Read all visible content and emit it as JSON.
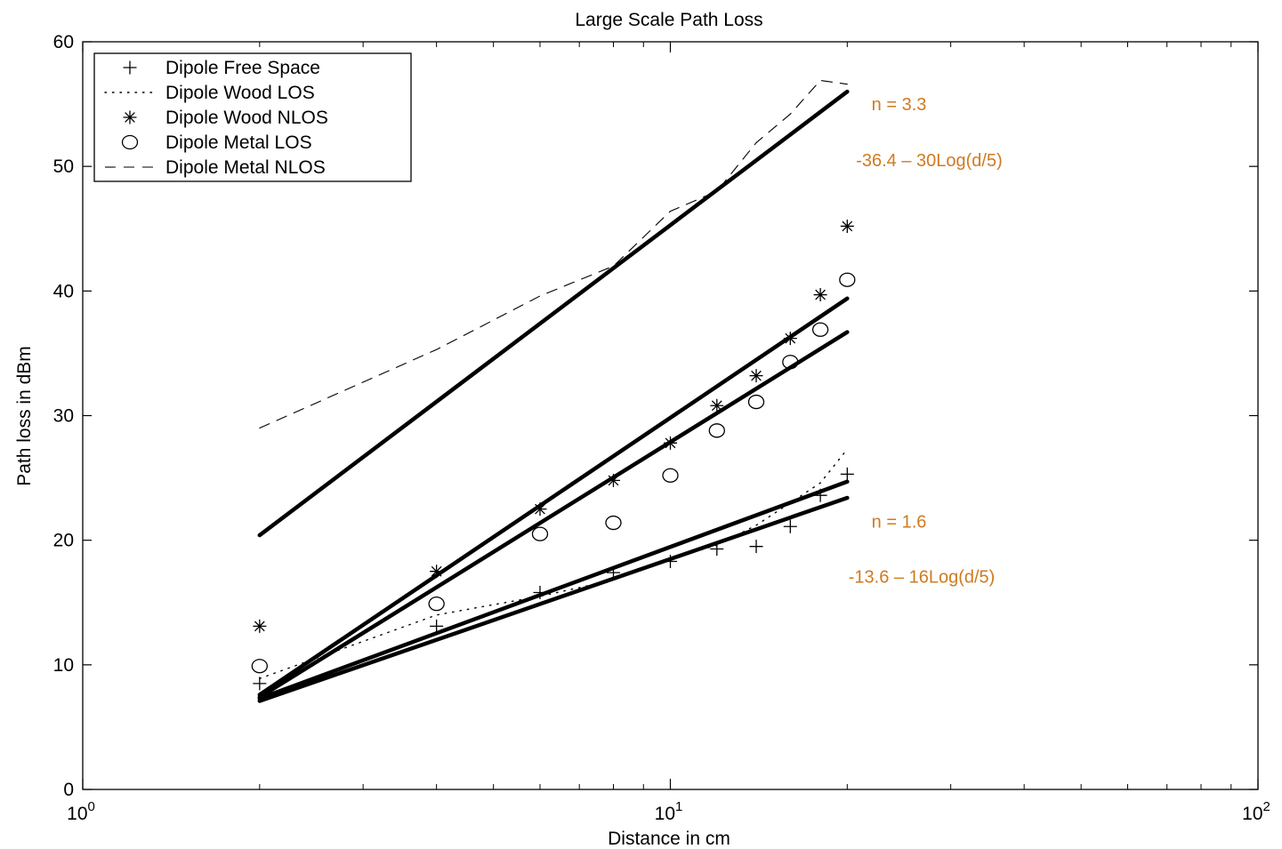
{
  "chart_data": {
    "type": "scatter",
    "title": "Large Scale Path Loss",
    "xlabel": "Distance in cm",
    "ylabel": "Path loss in dBm",
    "xscale": "log",
    "xlim": [
      1,
      100
    ],
    "ylim": [
      0,
      60
    ],
    "grid": false,
    "legend_position": "top-left",
    "x_ticks": [
      {
        "value": 1,
        "base": "10",
        "exp": "0"
      },
      {
        "value": 10,
        "base": "10",
        "exp": "1"
      },
      {
        "value": 100,
        "base": "10",
        "exp": "2"
      }
    ],
    "y_ticks": [
      {
        "value": 0,
        "label": "0"
      },
      {
        "value": 10,
        "label": "10"
      },
      {
        "value": 20,
        "label": "20"
      },
      {
        "value": 30,
        "label": "30"
      },
      {
        "value": 40,
        "label": "40"
      },
      {
        "value": 50,
        "label": "50"
      },
      {
        "value": 60,
        "label": "60"
      }
    ],
    "series": [
      {
        "name": "Dipole Free Space",
        "marker": "plus",
        "x": [
          2,
          4,
          6,
          8,
          10,
          12,
          14,
          16,
          18,
          20
        ],
        "y": [
          8.5,
          13.1,
          15.8,
          17.4,
          18.3,
          19.3,
          19.5,
          21.1,
          23.6,
          25.3
        ]
      },
      {
        "name": "Dipole Wood LOS",
        "marker": "dotted-line",
        "x": [
          2,
          4,
          6,
          8,
          10,
          12,
          14,
          16,
          18,
          20
        ],
        "y": [
          8.9,
          14.0,
          15.5,
          16.8,
          18.5,
          19.6,
          21.2,
          23.0,
          24.6,
          27.3
        ]
      },
      {
        "name": "Dipole Wood NLOS",
        "marker": "asterisk",
        "x": [
          2,
          4,
          6,
          8,
          10,
          12,
          14,
          16,
          18,
          20
        ],
        "y": [
          13.1,
          17.5,
          22.5,
          24.8,
          27.8,
          30.8,
          33.2,
          36.2,
          39.7,
          45.2
        ]
      },
      {
        "name": "Dipole Metal LOS",
        "marker": "circle",
        "x": [
          2,
          4,
          6,
          8,
          10,
          12,
          14,
          16,
          18,
          20
        ],
        "y": [
          9.9,
          14.9,
          20.5,
          21.4,
          25.2,
          28.8,
          31.1,
          34.3,
          36.9,
          40.9
        ]
      },
      {
        "name": "Dipole Metal NLOS",
        "marker": "dashed-line",
        "x": [
          2,
          4,
          6,
          8,
          10,
          12,
          14,
          16,
          18,
          20
        ],
        "y": [
          29.0,
          35.3,
          39.6,
          42.0,
          46.4,
          48.0,
          51.9,
          54.2,
          56.9,
          56.6
        ]
      }
    ],
    "fit_lines": [
      {
        "x": [
          2,
          20
        ],
        "y": [
          20.4,
          56.0
        ]
      },
      {
        "x": [
          2,
          20
        ],
        "y": [
          7.6,
          39.4
        ]
      },
      {
        "x": [
          2,
          20
        ],
        "y": [
          7.4,
          36.7
        ]
      },
      {
        "x": [
          2,
          20
        ],
        "y": [
          7.3,
          24.7
        ]
      },
      {
        "x": [
          2,
          20
        ],
        "y": [
          7.1,
          23.4
        ]
      }
    ],
    "annotations": [
      {
        "text": "n = 3.3",
        "x": 22,
        "y": 55.0
      },
      {
        "text": "-36.4 – 30Log(d/5)",
        "x": 20.7,
        "y": 50.5
      },
      {
        "text": "n = 1.6",
        "x": 22,
        "y": 21.5
      },
      {
        "text": "-13.6 – 16Log(d/5)",
        "x": 20.1,
        "y": 17.1
      }
    ],
    "annotation_color": "#d07a20"
  }
}
